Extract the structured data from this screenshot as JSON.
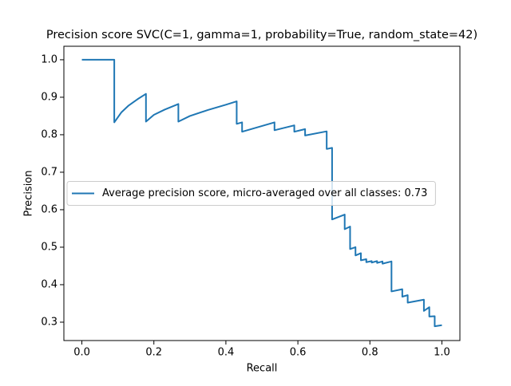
{
  "chart_data": {
    "type": "line",
    "title": "Precision score SVC(C=1, gamma=1, probability=True, random_state=42)",
    "x_label": "Recall",
    "y_label": "Precision",
    "x": [
      0,
      0.09,
      0.09,
      0.11,
      0.13,
      0.155,
      0.178,
      0.178,
      0.2,
      0.23,
      0.268,
      0.268,
      0.3,
      0.35,
      0.4,
      0.43,
      0.43,
      0.445,
      0.445,
      0.535,
      0.535,
      0.59,
      0.59,
      0.62,
      0.62,
      0.68,
      0.68,
      0.695,
      0.695,
      0.73,
      0.73,
      0.745,
      0.745,
      0.76,
      0.76,
      0.775,
      0.775,
      0.79,
      0.79,
      0.805,
      0.805,
      0.82,
      0.82,
      0.835,
      0.835,
      0.86,
      0.86,
      0.89,
      0.89,
      0.905,
      0.905,
      0.95,
      0.95,
      0.965,
      0.965,
      0.98,
      0.98,
      1.0
    ],
    "series": [
      {
        "name": "Average precision score, micro-averaged over all classes: 0.73",
        "color": "#1f77b4",
        "values": [
          1.0,
          1.0,
          0.833,
          0.86,
          0.878,
          0.895,
          0.909,
          0.835,
          0.853,
          0.867,
          0.882,
          0.835,
          0.85,
          0.866,
          0.88,
          0.889,
          0.829,
          0.833,
          0.808,
          0.833,
          0.812,
          0.825,
          0.808,
          0.815,
          0.798,
          0.809,
          0.762,
          0.765,
          0.574,
          0.587,
          0.548,
          0.555,
          0.495,
          0.5,
          0.478,
          0.484,
          0.465,
          0.468,
          0.46,
          0.463,
          0.459,
          0.463,
          0.458,
          0.462,
          0.456,
          0.462,
          0.382,
          0.388,
          0.368,
          0.372,
          0.352,
          0.36,
          0.33,
          0.34,
          0.315,
          0.316,
          0.289,
          0.292
        ]
      }
    ],
    "xlim": [
      -0.05,
      1.05
    ],
    "ylim": [
      0.251,
      1.036
    ],
    "xticks": [
      {
        "value": 0,
        "label": "0.0"
      },
      0.2,
      0.4,
      0.6,
      0.8,
      {
        "value": 1,
        "label": "1.0"
      }
    ],
    "yticks": [
      0.3,
      0.4,
      0.5,
      0.6,
      0.7,
      0.8,
      0.9,
      {
        "value": 1,
        "label": "1.0"
      }
    ],
    "legend": "center left",
    "grid": false
  }
}
